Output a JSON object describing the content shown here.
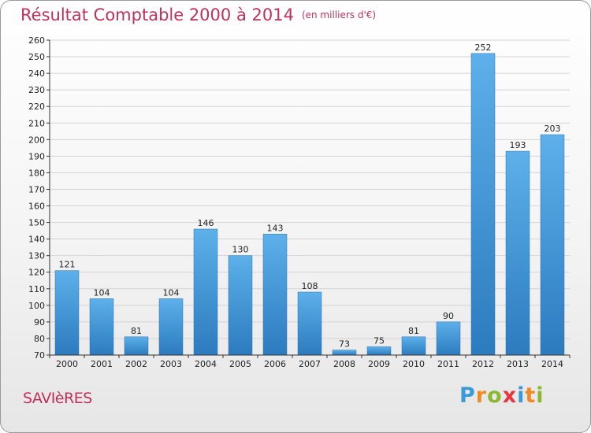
{
  "header": {
    "title": "Résultat Comptable 2000 à 2014",
    "subtitle": "(en milliers d'€)"
  },
  "footer": {
    "commune": "SAVIèRES",
    "logo_text": "Proxiti",
    "logo_letters": [
      "P",
      "r",
      "o",
      "x",
      "i",
      "t",
      "i"
    ],
    "logo_colors": [
      "#3a9ad9",
      "#f08a24",
      "#8ab833",
      "#e8343a",
      "#3a9ad9",
      "#f08a24",
      "#8ab833"
    ]
  },
  "chart_data": {
    "type": "bar",
    "categories": [
      "2000",
      "2001",
      "2002",
      "2003",
      "2004",
      "2005",
      "2006",
      "2007",
      "2008",
      "2009",
      "2010",
      "2011",
      "2012",
      "2013",
      "2014"
    ],
    "values": [
      121,
      104,
      81,
      104,
      146,
      130,
      143,
      108,
      73,
      75,
      81,
      90,
      252,
      193,
      203
    ],
    "title": "Résultat Comptable 2000 à 2014",
    "ylim": [
      70,
      260
    ],
    "yticks": [
      70,
      80,
      90,
      100,
      110,
      120,
      130,
      140,
      150,
      160,
      170,
      180,
      190,
      200,
      210,
      220,
      230,
      240,
      250,
      260
    ],
    "grid": true,
    "legend": "none",
    "bar_color": "#3b8fd4"
  }
}
